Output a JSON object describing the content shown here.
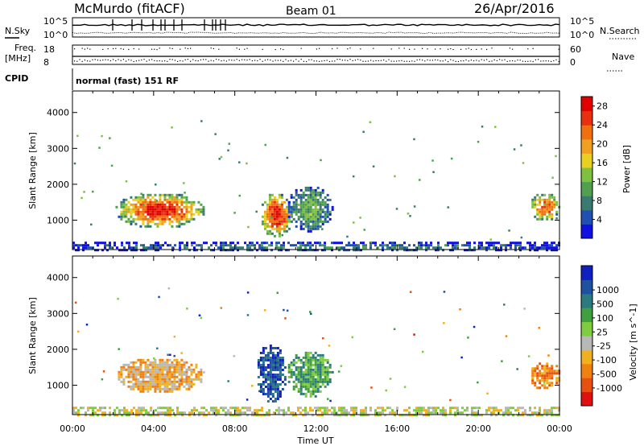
{
  "header": {
    "station": "McMurdo (fitACF)",
    "beam": "Beam 01",
    "date": "26/Apr/2016"
  },
  "top_panels": {
    "nsky_label": "N.Sky",
    "nsky_ticks": [
      "10^5",
      "10^0"
    ],
    "nsearch_label": "N.Search",
    "nsearch_ticks": [
      "10^5",
      "10^0"
    ],
    "freq_label_1": "Freq.",
    "freq_label_2": "[MHz]",
    "freq_ticks": [
      "18",
      "8"
    ],
    "nave_label": "Nave",
    "nave_ticks": [
      "60",
      "0"
    ],
    "cpid_label": "CPID",
    "cpid_text": "normal (fast) 151 RF"
  },
  "colors": {
    "power_scale": [
      "#1010e0",
      "#2050b0",
      "#3a7a70",
      "#50a050",
      "#80c040",
      "#e8d020",
      "#f0a020",
      "#f07010",
      "#e83010",
      "#e00000"
    ],
    "velocity_scale": [
      "#1020c0",
      "#2050a0",
      "#2a7a80",
      "#40a040",
      "#80cc40",
      "#b8b8b8",
      "#f0b020",
      "#f08010",
      "#e85010",
      "#e01010"
    ]
  },
  "chart_data": [
    {
      "type": "heatmap",
      "title": "",
      "quantity": "Power",
      "xlabel": "",
      "ylabel": "Slant Range [km]",
      "x_ticks": [
        "00:00",
        "04:00",
        "08:00",
        "12:00",
        "16:00",
        "20:00",
        "00:00"
      ],
      "xlim_hours": [
        0,
        24
      ],
      "y_ticks": [
        "1000",
        "2000",
        "3000",
        "4000"
      ],
      "ylim": [
        180,
        4600
      ],
      "colorbar_label": "Power [dB]",
      "colorbar_ticks": [
        "4",
        "8",
        "12",
        "16",
        "20",
        "24",
        "28"
      ],
      "colorbar_range": [
        0,
        30
      ],
      "features": [
        {
          "time_hours": [
            2.0,
            6.5
          ],
          "range_km": [
            800,
            1800
          ],
          "peak_db": 28
        },
        {
          "time_hours": [
            9.2,
            10.8
          ],
          "range_km": [
            550,
            1800
          ],
          "peak_db": 28
        },
        {
          "time_hours": [
            10.5,
            12.8
          ],
          "range_km": [
            700,
            2000
          ],
          "peak_db": 12
        },
        {
          "time_hours": [
            22.5,
            24.0
          ],
          "range_km": [
            1000,
            1800
          ],
          "peak_db": 24
        },
        {
          "time_hours": [
            0.0,
            24.0
          ],
          "range_km": [
            180,
            400
          ],
          "peak_db": 8
        }
      ]
    },
    {
      "type": "heatmap",
      "title": "",
      "quantity": "Velocity",
      "xlabel": "Time UT",
      "ylabel": "Slant Range [km]",
      "x_ticks": [
        "00:00",
        "04:00",
        "08:00",
        "12:00",
        "16:00",
        "20:00",
        "00:00"
      ],
      "xlim_hours": [
        0,
        24
      ],
      "y_ticks": [
        "1000",
        "2000",
        "3000",
        "4000"
      ],
      "ylim": [
        180,
        4600
      ],
      "colorbar_label": "Velocity [m s^-1]",
      "colorbar_ticks": [
        "1000",
        "500",
        "100",
        "25",
        "-25",
        "-100",
        "-500",
        "-1000"
      ],
      "features": [
        {
          "time_hours": [
            2.0,
            6.5
          ],
          "range_km": [
            800,
            1800
          ],
          "dominant_velocity": "-100"
        },
        {
          "time_hours": [
            9.0,
            10.5
          ],
          "range_km": [
            550,
            2200
          ],
          "dominant_velocity": "500"
        },
        {
          "time_hours": [
            10.5,
            12.8
          ],
          "range_km": [
            700,
            2000
          ],
          "dominant_velocity": "100"
        },
        {
          "time_hours": [
            22.5,
            24.0
          ],
          "range_km": [
            900,
            1700
          ],
          "dominant_velocity": "-500"
        },
        {
          "time_hours": [
            0.0,
            24.0
          ],
          "range_km": [
            180,
            400
          ],
          "dominant_velocity": "-25"
        }
      ]
    }
  ]
}
